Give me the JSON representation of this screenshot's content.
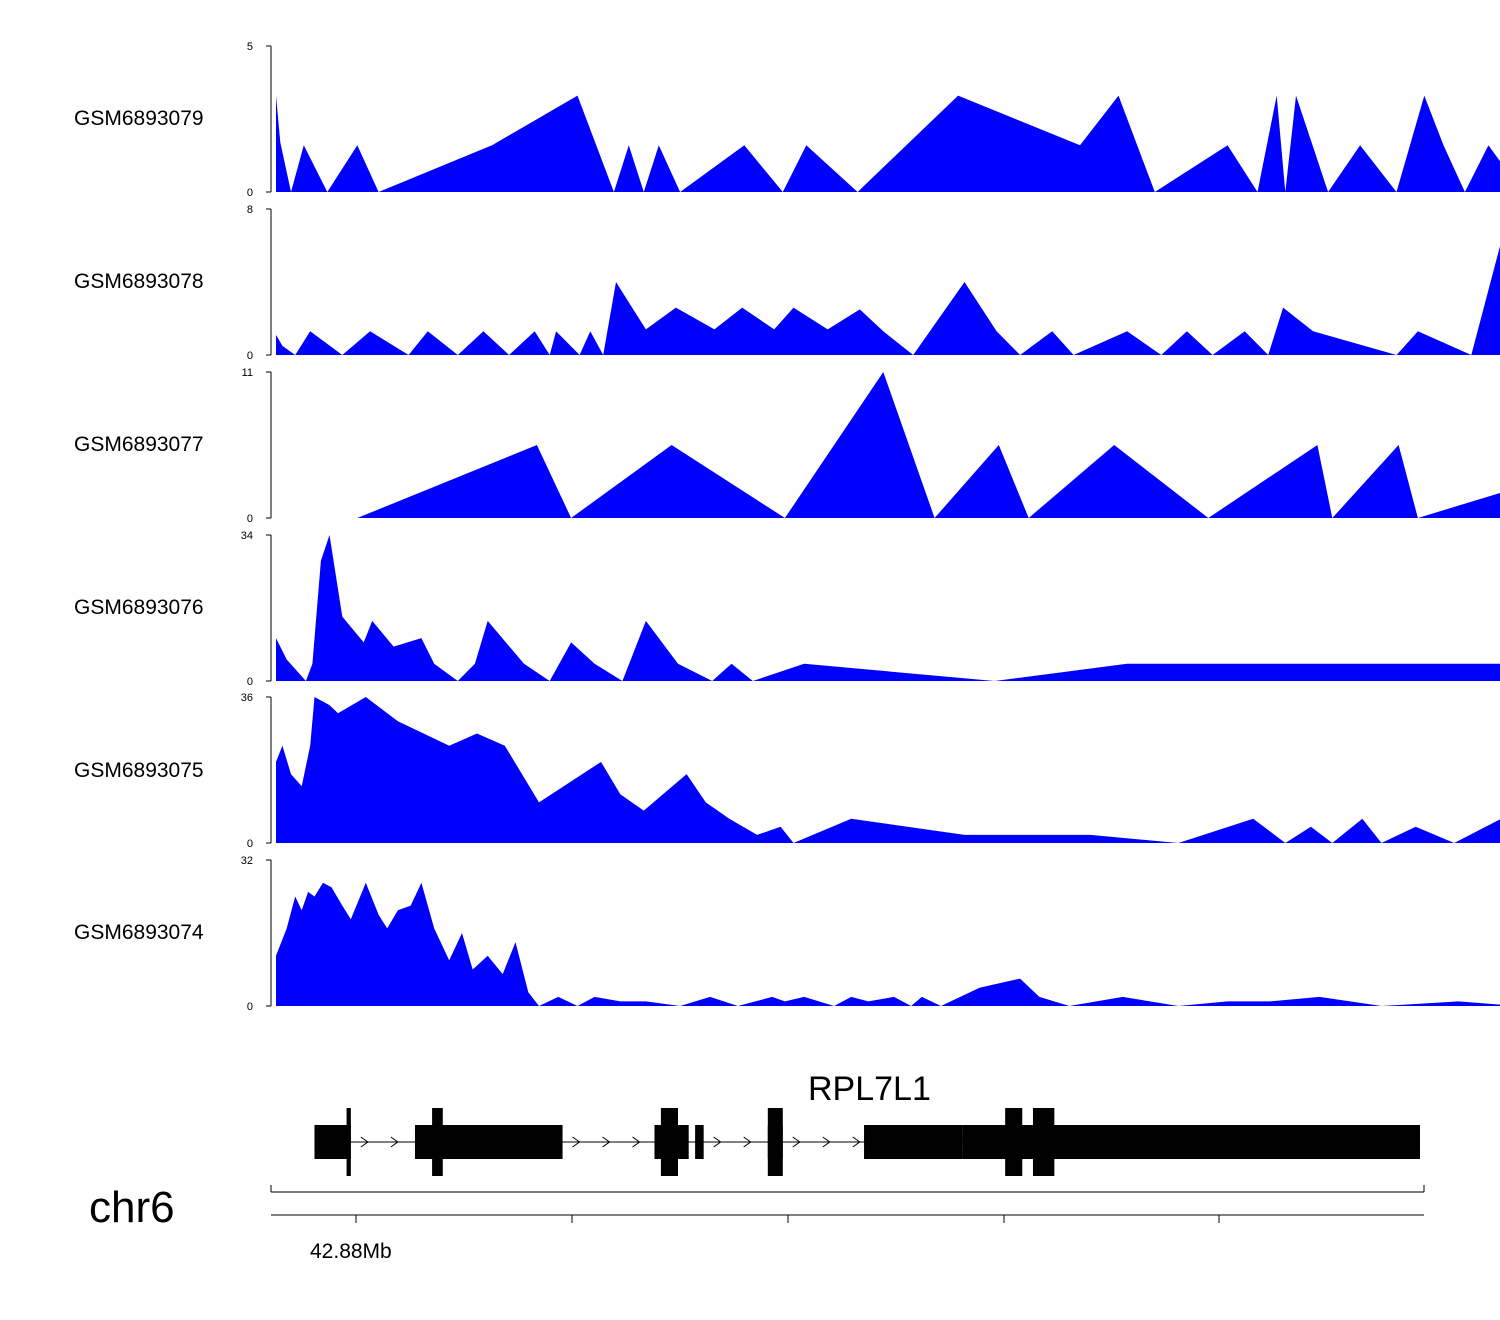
{
  "chart_data": {
    "type": "area",
    "title": "",
    "xlabel": "",
    "ylabel": "",
    "xlim": [
      42.861,
      42.9145
    ],
    "tracks": [
      {
        "name": "GSM6893079",
        "ylim": [
          0,
          5
        ],
        "tick_labels": [
          "0",
          "5"
        ],
        "x": [
          42.861,
          42.8612,
          42.8617,
          42.8623,
          42.8634,
          42.8648,
          42.8658,
          42.8711,
          42.8751,
          42.8768,
          42.8775,
          42.8782,
          42.8789,
          42.8799,
          42.8829,
          42.8847,
          42.8858,
          42.8882,
          42.8929,
          42.8986,
          42.9004,
          42.9021,
          42.9055,
          42.9069,
          42.9078,
          42.9082,
          42.9087,
          42.9102,
          42.9117,
          42.9134,
          42.9147,
          42.9156,
          42.9166,
          42.9177,
          42.9193,
          42.9212,
          42.9222,
          42.9235,
          42.9263,
          42.9308,
          42.9346,
          42.9372,
          42.9385,
          42.9426,
          42.9448,
          42.9456,
          42.9465
        ],
        "values": [
          3.3,
          1.7,
          0,
          1.6,
          0,
          1.6,
          0,
          1.6,
          3.3,
          0,
          1.6,
          0,
          1.6,
          0,
          1.6,
          0,
          1.6,
          0,
          3.3,
          1.6,
          3.3,
          0,
          1.6,
          0,
          3.3,
          0,
          3.3,
          0,
          1.6,
          0,
          3.3,
          1.6,
          0,
          1.6,
          0,
          1.6,
          0,
          1.6,
          0,
          1.6,
          0,
          1.6,
          0,
          1.6,
          0,
          1.6,
          0
        ],
        "fill": "#0000ff"
      },
      {
        "name": "GSM6893078",
        "ylim": [
          0,
          8
        ],
        "tick_labels": [
          "0",
          "8"
        ],
        "x": [
          42.861,
          42.8613,
          42.8619,
          42.8626,
          42.8641,
          42.8654,
          42.8672,
          42.8681,
          42.8695,
          42.8707,
          42.8719,
          42.8731,
          42.8738,
          42.8741,
          42.8752,
          42.8757,
          42.8763,
          42.8769,
          42.8783,
          42.8797,
          42.8815,
          42.8828,
          42.8843,
          42.8852,
          42.8868,
          42.8883,
          42.8894,
          42.8908,
          42.8932,
          42.8947,
          42.8958,
          42.8973,
          42.8983,
          42.9008,
          42.9024,
          42.9036,
          42.9048,
          42.9063,
          42.9074,
          42.9081,
          42.9095,
          42.9134,
          42.9144,
          42.9169,
          42.9187,
          42.9212,
          42.9235,
          42.9255,
          42.9267,
          42.9272,
          42.9286,
          42.9298,
          42.9313,
          42.9335,
          42.9351,
          42.9374,
          42.9392,
          42.9403,
          42.9418,
          42.9436,
          42.9446
        ],
        "values": [
          1.1,
          0.5,
          0,
          1.3,
          0,
          1.3,
          0,
          1.3,
          0,
          1.3,
          0,
          1.3,
          0,
          1.3,
          0,
          1.3,
          0,
          4.0,
          1.4,
          2.6,
          1.4,
          2.6,
          1.4,
          2.6,
          1.4,
          2.5,
          1.3,
          0,
          4.0,
          1.3,
          0,
          1.3,
          0,
          1.3,
          0,
          1.3,
          0,
          1.3,
          0,
          2.6,
          1.3,
          0,
          1.3,
          0,
          8.0,
          6.7,
          1.3,
          0,
          1.3,
          4.0,
          1.3,
          0,
          2.6,
          1.3,
          0,
          1.3,
          0,
          1.3,
          0,
          5.3,
          1.4
        ],
        "fill": "#0000ff"
      },
      {
        "name": "GSM6893077",
        "ylim": [
          0,
          11
        ],
        "tick_labels": [
          "0",
          "11"
        ],
        "x": [
          42.8648,
          42.8732,
          42.8748,
          42.8795,
          42.8848,
          42.8894,
          42.8918,
          42.8948,
          42.8962,
          42.9002,
          42.9046,
          42.9097,
          42.9104,
          42.9135,
          42.9144,
          42.9256,
          42.9304,
          42.9394
        ],
        "values": [
          0,
          5.5,
          0,
          5.5,
          0,
          11,
          0,
          5.5,
          0,
          5.5,
          0,
          5.5,
          0,
          5.5,
          0,
          5.5,
          0,
          0
        ],
        "fill": "#0000ff"
      },
      {
        "name": "GSM6893076",
        "ylim": [
          0,
          34
        ],
        "tick_labels": [
          "0",
          "34"
        ],
        "x": [
          42.861,
          42.8615,
          42.8624,
          42.8627,
          42.8631,
          42.8635,
          42.8641,
          42.8651,
          42.8655,
          42.8665,
          42.8678,
          42.8684,
          42.8695,
          42.8703,
          42.8709,
          42.8726,
          42.8738,
          42.8748,
          42.8759,
          42.8772,
          42.8783,
          42.8798,
          42.8814,
          42.8823,
          42.8833,
          42.8857,
          42.8946,
          42.9008,
          42.9138,
          42.9222,
          42.9255,
          42.9263,
          42.9283,
          42.9309,
          42.9328,
          42.9344,
          42.9363,
          42.9374,
          42.9385,
          42.9406,
          42.9416,
          42.9438,
          42.9446,
          42.9446
        ],
        "values": [
          10,
          5,
          0,
          4,
          28,
          34,
          15,
          9,
          14,
          8,
          10,
          4,
          0,
          4,
          14,
          4,
          0,
          9,
          4,
          0,
          14,
          4,
          0,
          4,
          0,
          4,
          0,
          4,
          4,
          4,
          0,
          0,
          4,
          9,
          4,
          0,
          4,
          9,
          4,
          0,
          4,
          9,
          4,
          0
        ],
        "fill": "#0000ff"
      }
    ]
  },
  "tracks_extra": [
    {
      "name": "GSM6893075",
      "ylim": [
        0,
        36
      ],
      "tick_labels": [
        "0",
        "36"
      ],
      "x": [
        42.861,
        42.8613,
        42.8617,
        42.8622,
        42.8626,
        42.8628,
        42.8635,
        42.8639,
        42.8652,
        42.8667,
        42.8691,
        42.8704,
        42.8717,
        42.8733,
        42.8762,
        42.8771,
        42.8782,
        42.8802,
        42.8811,
        42.8822,
        42.8835,
        42.8846,
        42.8852,
        42.8879,
        42.8932,
        42.8991,
        42.9032,
        42.9067,
        42.9082,
        42.9094,
        42.9104,
        42.9118,
        42.9127,
        42.9143,
        42.9161,
        42.9183,
        42.9221,
        42.9238,
        42.9284,
        42.9311,
        42.9328,
        42.9344,
        42.9375,
        42.9386,
        42.9415,
        42.9438,
        42.9446
      ],
      "values": [
        20,
        24,
        17,
        14,
        24,
        36,
        34,
        32,
        36,
        30,
        24,
        27,
        24,
        10,
        20,
        12,
        8,
        17,
        10,
        6,
        2,
        4,
        0,
        6,
        2,
        2,
        0,
        6,
        0,
        4,
        0,
        6,
        0,
        4,
        0,
        6,
        0,
        6,
        0,
        3,
        0,
        6,
        0,
        3,
        0,
        6,
        3
      ],
      "fill": "#0000ff"
    },
    {
      "name": "GSM6893074",
      "ylim": [
        0,
        32
      ],
      "tick_labels": [
        "0",
        "32"
      ],
      "x": [
        42.861,
        42.8615,
        42.8619,
        42.8622,
        42.8625,
        42.8628,
        42.8632,
        42.8636,
        42.8641,
        42.8645,
        42.8652,
        42.8658,
        42.8662,
        42.8667,
        42.8673,
        42.8678,
        42.8684,
        42.8691,
        42.8697,
        42.8702,
        42.8709,
        42.8716,
        42.8722,
        42.8728,
        42.8733,
        42.8742,
        42.8751,
        42.8759,
        42.8771,
        42.8783,
        42.8799,
        42.8813,
        42.8826,
        42.8842,
        42.8848,
        42.8857,
        42.8871,
        42.8879,
        42.8887,
        42.8899,
        42.8907,
        42.8912,
        42.8921,
        42.8939,
        42.8958,
        42.8967,
        42.8981,
        42.9006,
        42.9032,
        42.9055,
        42.9075,
        42.9098,
        42.9127,
        42.9163,
        42.9191,
        42.9223,
        42.9244,
        42.9264,
        42.9287,
        42.9304,
        42.9333,
        42.9348,
        42.9367,
        42.9389,
        42.9407,
        42.9429,
        42.9438,
        42.9446
      ],
      "values": [
        11,
        17,
        24,
        21,
        25,
        24,
        27,
        26,
        22,
        19,
        27,
        20,
        17,
        21,
        22,
        27,
        17,
        10,
        16,
        8,
        11,
        7,
        14,
        3,
        0,
        2,
        0,
        2,
        1,
        1,
        0,
        2,
        0,
        2,
        1,
        2,
        0,
        2,
        1,
        2,
        0,
        2,
        0,
        4,
        6,
        2,
        0,
        2,
        0,
        1,
        1,
        2,
        0,
        1,
        0,
        2,
        0,
        2,
        0,
        3,
        0,
        2,
        0,
        2,
        0,
        4,
        3,
        0
      ],
      "fill": "#0000ff"
    }
  ],
  "track_labels": {
    "t1": "GSM6893079",
    "t2": "GSM6893078",
    "t3": "GSM6893077",
    "t4": "GSM6893076",
    "t5": "GSM6893075",
    "t6": "GSM6893074"
  },
  "gene": {
    "name": "RPL7L1",
    "strand": "+",
    "exons_mb": [
      [
        42.8628,
        42.8645
      ],
      [
        42.8675,
        42.8744
      ],
      [
        42.8787,
        42.8803
      ],
      [
        42.8806,
        42.881
      ],
      [
        42.884,
        42.8847
      ],
      [
        42.8885,
        42.8931
      ],
      [
        42.8931,
        42.9145
      ]
    ],
    "utr_color": "#000000"
  },
  "genome_axis": {
    "chromosome": "chr6",
    "tick_mb": [
      42.88,
      42.89,
      42.9,
      42.91,
      42.92
    ],
    "tick_label": "42.88Mb"
  },
  "colors": {
    "track_fill": "#0000ff",
    "axis": "#000000",
    "gene": "#000000"
  }
}
